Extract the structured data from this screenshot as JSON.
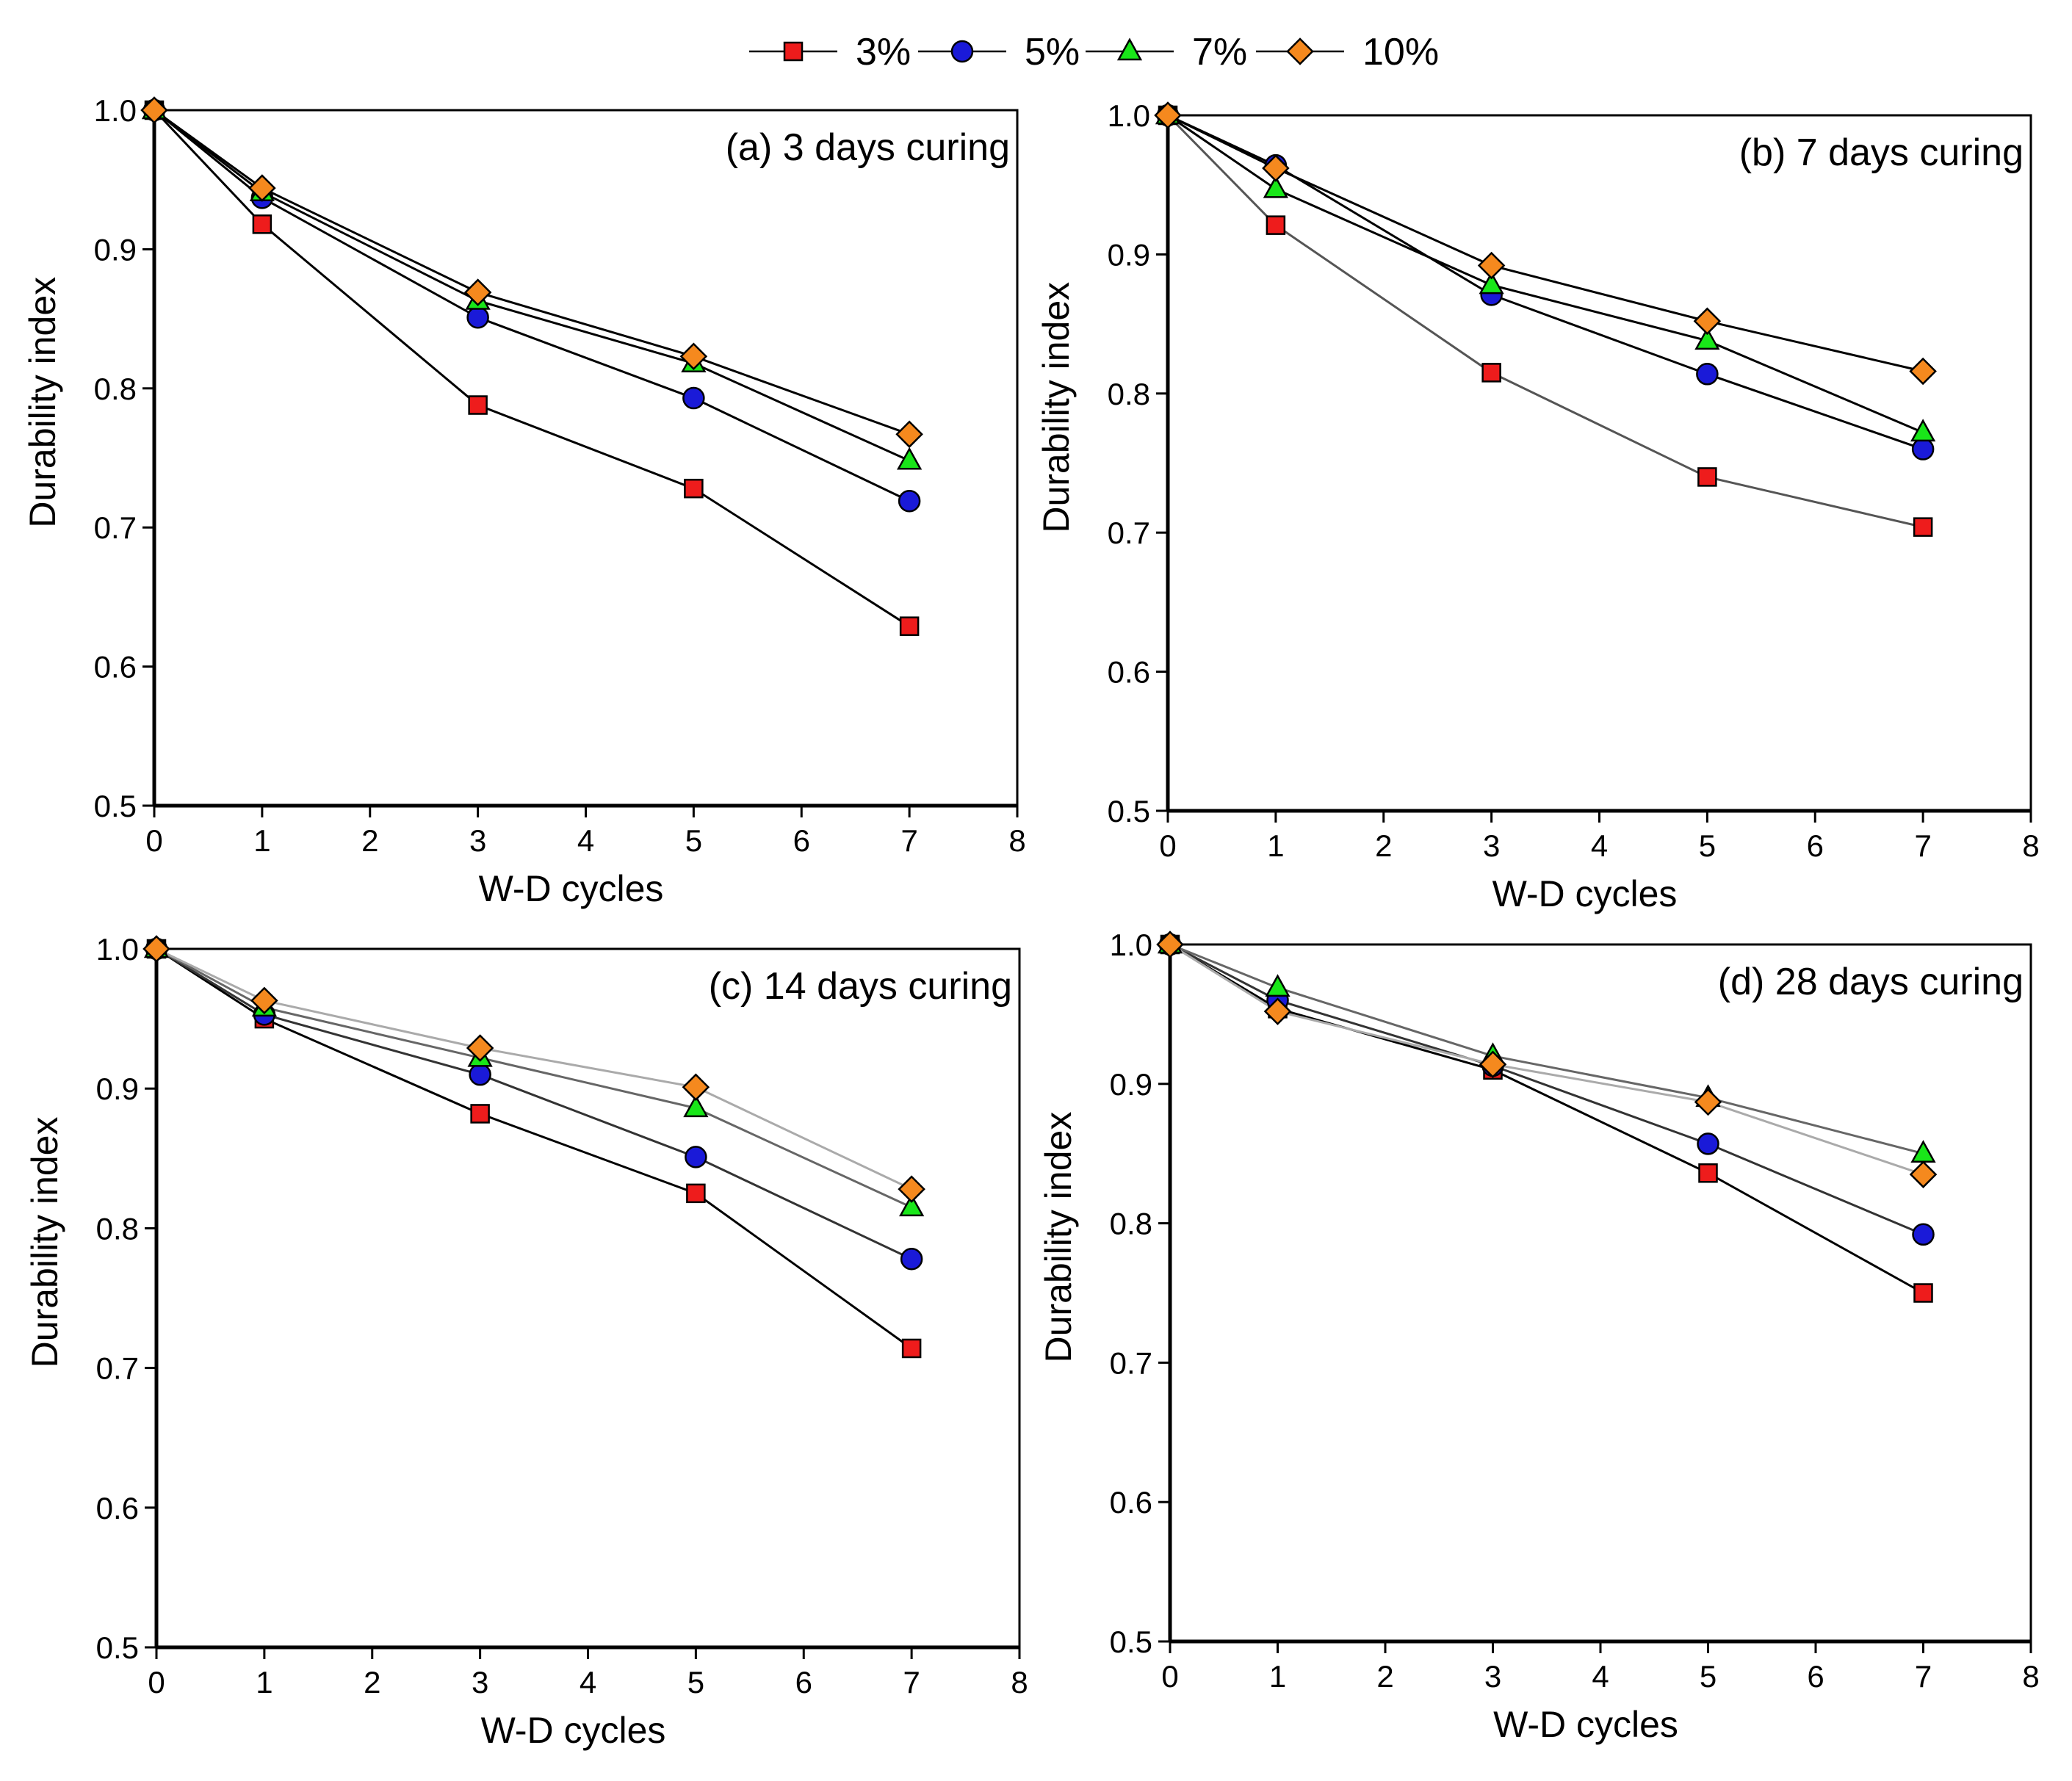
{
  "legend": {
    "entries": [
      {
        "label": "3%",
        "marker": "square",
        "color": "#ee1c1c"
      },
      {
        "label": "5%",
        "marker": "circle",
        "color": "#1a1ad8"
      },
      {
        "label": "7%",
        "marker": "triangle",
        "color": "#19e619"
      },
      {
        "label": "10%",
        "marker": "diamond",
        "color": "#f5891e"
      }
    ]
  },
  "chart_data": [
    {
      "type": "line",
      "title": "(a) 3 days curing",
      "xlabel": "W-D cycles",
      "ylabel": "Durability index",
      "xlim": [
        0,
        8
      ],
      "ylim": [
        0.5,
        1.0
      ],
      "xticks": [
        "0",
        "1",
        "2",
        "3",
        "4",
        "5",
        "6",
        "7",
        "8"
      ],
      "yticks": [
        "0.5",
        "0.6",
        "0.7",
        "0.8",
        "0.9",
        "1.0"
      ],
      "x": [
        0,
        1,
        3,
        5,
        7
      ],
      "series": [
        {
          "name": "3%",
          "values": [
            1.0,
            0.918,
            0.788,
            0.728,
            0.629
          ],
          "line_color": "#000000"
        },
        {
          "name": "5%",
          "values": [
            1.0,
            0.937,
            0.851,
            0.793,
            0.719
          ],
          "line_color": "#000000"
        },
        {
          "name": "7%",
          "values": [
            1.0,
            0.941,
            0.863,
            0.818,
            0.748
          ],
          "line_color": "#000000"
        },
        {
          "name": "10%",
          "values": [
            1.0,
            0.944,
            0.869,
            0.823,
            0.767
          ],
          "line_color": "#000000"
        }
      ]
    },
    {
      "type": "line",
      "title": "(b) 7 days curing",
      "xlabel": "W-D cycles",
      "ylabel": "Durability index",
      "xlim": [
        0,
        8
      ],
      "ylim": [
        0.5,
        1.0
      ],
      "xticks": [
        "0",
        "1",
        "2",
        "3",
        "4",
        "5",
        "6",
        "7",
        "8"
      ],
      "yticks": [
        "0.5",
        "0.6",
        "0.7",
        "0.8",
        "0.9",
        "1.0"
      ],
      "x": [
        0,
        1,
        3,
        5,
        7
      ],
      "series": [
        {
          "name": "3%",
          "values": [
            1.0,
            0.921,
            0.815,
            0.74,
            0.704
          ],
          "line_color": "#555555"
        },
        {
          "name": "5%",
          "values": [
            1.0,
            0.964,
            0.871,
            0.814,
            0.76
          ],
          "line_color": "#000000"
        },
        {
          "name": "7%",
          "values": [
            1.0,
            0.947,
            0.878,
            0.838,
            0.772
          ],
          "line_color": "#000000"
        },
        {
          "name": "10%",
          "values": [
            1.0,
            0.962,
            0.892,
            0.852,
            0.816
          ],
          "line_color": "#000000"
        }
      ]
    },
    {
      "type": "line",
      "title": "(c) 14 days curing",
      "xlabel": "W-D cycles",
      "ylabel": "Durability index",
      "xlim": [
        0,
        8
      ],
      "ylim": [
        0.5,
        1.0
      ],
      "xticks": [
        "0",
        "1",
        "2",
        "3",
        "4",
        "5",
        "6",
        "7",
        "8"
      ],
      "yticks": [
        "0.5",
        "0.6",
        "0.7",
        "0.8",
        "0.9",
        "1.0"
      ],
      "x": [
        0,
        1,
        3,
        5,
        7
      ],
      "series": [
        {
          "name": "3%",
          "values": [
            1.0,
            0.95,
            0.882,
            0.825,
            0.714
          ],
          "line_color": "#000000"
        },
        {
          "name": "5%",
          "values": [
            1.0,
            0.953,
            0.91,
            0.851,
            0.778
          ],
          "line_color": "#333333"
        },
        {
          "name": "7%",
          "values": [
            1.0,
            0.958,
            0.922,
            0.886,
            0.815
          ],
          "line_color": "#666666"
        },
        {
          "name": "10%",
          "values": [
            1.0,
            0.963,
            0.929,
            0.901,
            0.828
          ],
          "line_color": "#aaaaaa"
        }
      ]
    },
    {
      "type": "line",
      "title": "(d) 28 days curing",
      "xlabel": "W-D cycles",
      "ylabel": "Durability index",
      "xlim": [
        0,
        8
      ],
      "ylim": [
        0.5,
        1.0
      ],
      "xticks": [
        "0",
        "1",
        "2",
        "3",
        "4",
        "5",
        "6",
        "7",
        "8"
      ],
      "yticks": [
        "0.5",
        "0.6",
        "0.7",
        "0.8",
        "0.9",
        "1.0"
      ],
      "x": [
        0,
        1,
        3,
        5,
        7
      ],
      "series": [
        {
          "name": "3%",
          "values": [
            1.0,
            0.954,
            0.91,
            0.836,
            0.75
          ],
          "line_color": "#000000"
        },
        {
          "name": "5%",
          "values": [
            1.0,
            0.96,
            0.913,
            0.857,
            0.792
          ],
          "line_color": "#333333"
        },
        {
          "name": "7%",
          "values": [
            1.0,
            0.969,
            0.92,
            0.89,
            0.85
          ],
          "line_color": "#666666"
        },
        {
          "name": "10%",
          "values": [
            1.0,
            0.952,
            0.914,
            0.887,
            0.835
          ],
          "line_color": "#aaaaaa"
        }
      ]
    }
  ]
}
